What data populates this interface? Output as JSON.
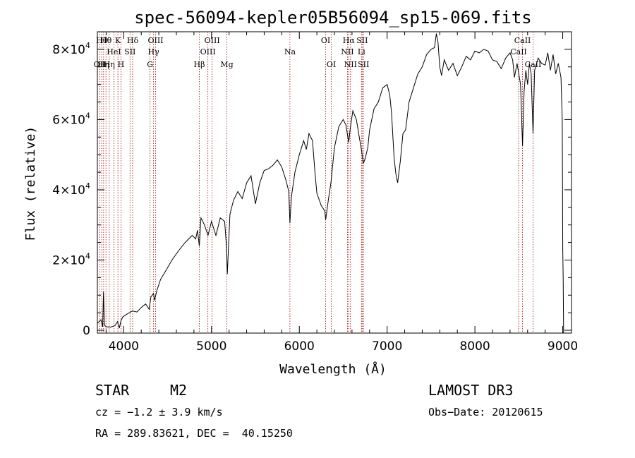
{
  "chart_data": {
    "type": "line",
    "title": "spec-56094-kepler05B56094_sp15-069.fits",
    "xlabel": "Wavelength (Å)",
    "ylabel": "Flux (relative)",
    "xlim": [
      3700,
      9100
    ],
    "ylim": [
      -800,
      85000
    ],
    "x_ticks": [
      {
        "value": 4000,
        "label": "4000"
      },
      {
        "value": 5000,
        "label": "5000"
      },
      {
        "value": 6000,
        "label": "6000"
      },
      {
        "value": 7000,
        "label": "7000"
      },
      {
        "value": 8000,
        "label": "8000"
      },
      {
        "value": 9000,
        "label": "9000"
      }
    ],
    "y_ticks": [
      {
        "value": 0,
        "mantissa": "0",
        "exp": ""
      },
      {
        "value": 20000,
        "mantissa": "2×10",
        "exp": "4"
      },
      {
        "value": 40000,
        "mantissa": "4×10",
        "exp": "4"
      },
      {
        "value": 60000,
        "mantissa": "6×10",
        "exp": "4"
      },
      {
        "value": 80000,
        "mantissa": "8×10",
        "exp": "4"
      }
    ],
    "series": [
      {
        "name": "spectrum",
        "color": "#000000",
        "points": [
          [
            3700,
            2000
          ],
          [
            3740,
            3000
          ],
          [
            3760,
            1000
          ],
          [
            3770,
            11000
          ],
          [
            3780,
            1500
          ],
          [
            3800,
            1000
          ],
          [
            3850,
            900
          ],
          [
            3900,
            1300
          ],
          [
            3930,
            2500
          ],
          [
            3950,
            600
          ],
          [
            3970,
            2800
          ],
          [
            3990,
            3800
          ],
          [
            4030,
            4500
          ],
          [
            4100,
            5500
          ],
          [
            4150,
            5200
          ],
          [
            4200,
            6500
          ],
          [
            4250,
            7500
          ],
          [
            4290,
            6000
          ],
          [
            4310,
            9500
          ],
          [
            4340,
            10500
          ],
          [
            4350,
            8500
          ],
          [
            4380,
            11500
          ],
          [
            4420,
            14500
          ],
          [
            4480,
            17000
          ],
          [
            4550,
            20000
          ],
          [
            4620,
            22500
          ],
          [
            4700,
            25000
          ],
          [
            4780,
            27000
          ],
          [
            4820,
            26000
          ],
          [
            4840,
            28500
          ],
          [
            4861,
            24000
          ],
          [
            4880,
            32000
          ],
          [
            4920,
            30000
          ],
          [
            4960,
            27000
          ],
          [
            5000,
            31000
          ],
          [
            5050,
            27000
          ],
          [
            5100,
            32000
          ],
          [
            5150,
            31000
          ],
          [
            5170,
            24000
          ],
          [
            5180,
            16000
          ],
          [
            5210,
            33000
          ],
          [
            5250,
            37000
          ],
          [
            5300,
            39500
          ],
          [
            5350,
            37500
          ],
          [
            5400,
            42000
          ],
          [
            5450,
            44000
          ],
          [
            5500,
            36000
          ],
          [
            5550,
            42000
          ],
          [
            5600,
            45500
          ],
          [
            5650,
            46000
          ],
          [
            5700,
            47000
          ],
          [
            5750,
            48500
          ],
          [
            5800,
            46500
          ],
          [
            5850,
            42500
          ],
          [
            5880,
            39500
          ],
          [
            5893,
            30500
          ],
          [
            5910,
            38000
          ],
          [
            5950,
            45000
          ],
          [
            6000,
            50000
          ],
          [
            6050,
            54000
          ],
          [
            6080,
            51500
          ],
          [
            6110,
            56000
          ],
          [
            6150,
            54000
          ],
          [
            6180,
            44500
          ],
          [
            6200,
            39000
          ],
          [
            6250,
            35500
          ],
          [
            6290,
            34000
          ],
          [
            6300,
            31500
          ],
          [
            6330,
            37000
          ],
          [
            6360,
            42000
          ],
          [
            6400,
            52000
          ],
          [
            6450,
            58000
          ],
          [
            6500,
            60000
          ],
          [
            6530,
            58500
          ],
          [
            6563,
            53500
          ],
          [
            6580,
            57500
          ],
          [
            6610,
            62500
          ],
          [
            6650,
            60000
          ],
          [
            6680,
            55500
          ],
          [
            6710,
            51000
          ],
          [
            6730,
            47500
          ],
          [
            6750,
            49000
          ],
          [
            6780,
            52000
          ],
          [
            6800,
            57000
          ],
          [
            6850,
            63000
          ],
          [
            6900,
            65000
          ],
          [
            6950,
            69000
          ],
          [
            7000,
            70000
          ],
          [
            7030,
            67000
          ],
          [
            7050,
            62000
          ],
          [
            7080,
            49000
          ],
          [
            7100,
            44500
          ],
          [
            7120,
            42000
          ],
          [
            7150,
            48000
          ],
          [
            7180,
            56000
          ],
          [
            7210,
            57000
          ],
          [
            7250,
            65000
          ],
          [
            7300,
            69000
          ],
          [
            7350,
            73000
          ],
          [
            7400,
            75000
          ],
          [
            7450,
            78500
          ],
          [
            7500,
            80000
          ],
          [
            7540,
            80500
          ],
          [
            7560,
            84500
          ],
          [
            7580,
            82000
          ],
          [
            7600,
            75000
          ],
          [
            7620,
            72500
          ],
          [
            7650,
            77000
          ],
          [
            7700,
            74000
          ],
          [
            7750,
            76000
          ],
          [
            7800,
            72500
          ],
          [
            7850,
            75000
          ],
          [
            7900,
            78000
          ],
          [
            7950,
            77000
          ],
          [
            8000,
            79500
          ],
          [
            8050,
            79000
          ],
          [
            8100,
            80000
          ],
          [
            8150,
            79500
          ],
          [
            8200,
            77000
          ],
          [
            8250,
            76500
          ],
          [
            8300,
            74500
          ],
          [
            8350,
            77500
          ],
          [
            8400,
            79000
          ],
          [
            8430,
            77000
          ],
          [
            8450,
            72000
          ],
          [
            8480,
            76000
          ],
          [
            8500,
            73000
          ],
          [
            8520,
            70000
          ],
          [
            8542,
            52500
          ],
          [
            8560,
            68000
          ],
          [
            8580,
            74000
          ],
          [
            8600,
            70000
          ],
          [
            8620,
            76000
          ],
          [
            8640,
            73000
          ],
          [
            8662,
            56000
          ],
          [
            8680,
            74000
          ],
          [
            8720,
            77500
          ],
          [
            8760,
            76000
          ],
          [
            8800,
            75500
          ],
          [
            8830,
            79000
          ],
          [
            8860,
            74000
          ],
          [
            8890,
            78500
          ],
          [
            8920,
            73000
          ],
          [
            8950,
            76000
          ],
          [
            8980,
            72000
          ],
          [
            8995,
            60000
          ],
          [
            9000,
            23000
          ],
          [
            9005,
            15000
          ],
          [
            9010,
            -800
          ]
        ]
      }
    ],
    "spectral_lines": [
      {
        "wavelength": 3727,
        "label": "OII",
        "row": 3
      },
      {
        "wavelength": 3750,
        "label": "Hθ",
        "row": 1
      },
      {
        "wavelength": 3771,
        "label": "Hη",
        "row": 3
      },
      {
        "wavelength": 3798,
        "label": "Hθ",
        "row": 1
      },
      {
        "wavelength": 3835,
        "label": "Hη",
        "row": 3
      },
      {
        "wavelength": 3889,
        "label": "HeI",
        "row": 2
      },
      {
        "wavelength": 3934,
        "label": "K",
        "row": 1
      },
      {
        "wavelength": 3969,
        "label": "H",
        "row": 3
      },
      {
        "wavelength": 4072,
        "label": "SII",
        "row": 2
      },
      {
        "wavelength": 4102,
        "label": "Hδ",
        "row": 1
      },
      {
        "wavelength": 4300,
        "label": "G",
        "row": 3
      },
      {
        "wavelength": 4340,
        "label": "Hγ",
        "row": 2
      },
      {
        "wavelength": 4363,
        "label": "OIII",
        "row": 1
      },
      {
        "wavelength": 4861,
        "label": "Hβ",
        "row": 3
      },
      {
        "wavelength": 4959,
        "label": "OIII",
        "row": 2
      },
      {
        "wavelength": 5007,
        "label": "OIII",
        "row": 1
      },
      {
        "wavelength": 5175,
        "label": "Mg",
        "row": 3
      },
      {
        "wavelength": 5893,
        "label": "Na",
        "row": 2
      },
      {
        "wavelength": 6300,
        "label": "OI",
        "row": 1
      },
      {
        "wavelength": 6364,
        "label": "OI",
        "row": 3
      },
      {
        "wavelength": 6548,
        "label": "NII",
        "row": 2
      },
      {
        "wavelength": 6563,
        "label": "Hα",
        "row": 1
      },
      {
        "wavelength": 6583,
        "label": "NII",
        "row": 3
      },
      {
        "wavelength": 6708,
        "label": "Li",
        "row": 2
      },
      {
        "wavelength": 6716,
        "label": "SII",
        "row": 1
      },
      {
        "wavelength": 6731,
        "label": "SII",
        "row": 3
      },
      {
        "wavelength": 8498,
        "label": "CaII",
        "row": 2
      },
      {
        "wavelength": 8542,
        "label": "CaII",
        "row": 1
      },
      {
        "wavelength": 8662,
        "label": "CaII",
        "row": 3
      }
    ]
  },
  "info": {
    "class": "STAR",
    "subclass": "M2",
    "survey": "LAMOST DR3",
    "cz": "cz = −1.2 ± 3.9 km/s",
    "obs_date": "Obs−Date: 20120615",
    "coords": "RA = 289.83621, DEC =  40.15250"
  },
  "colors": {
    "spectrum": "#000000",
    "lines": "#a01010",
    "axes": "#000000"
  }
}
